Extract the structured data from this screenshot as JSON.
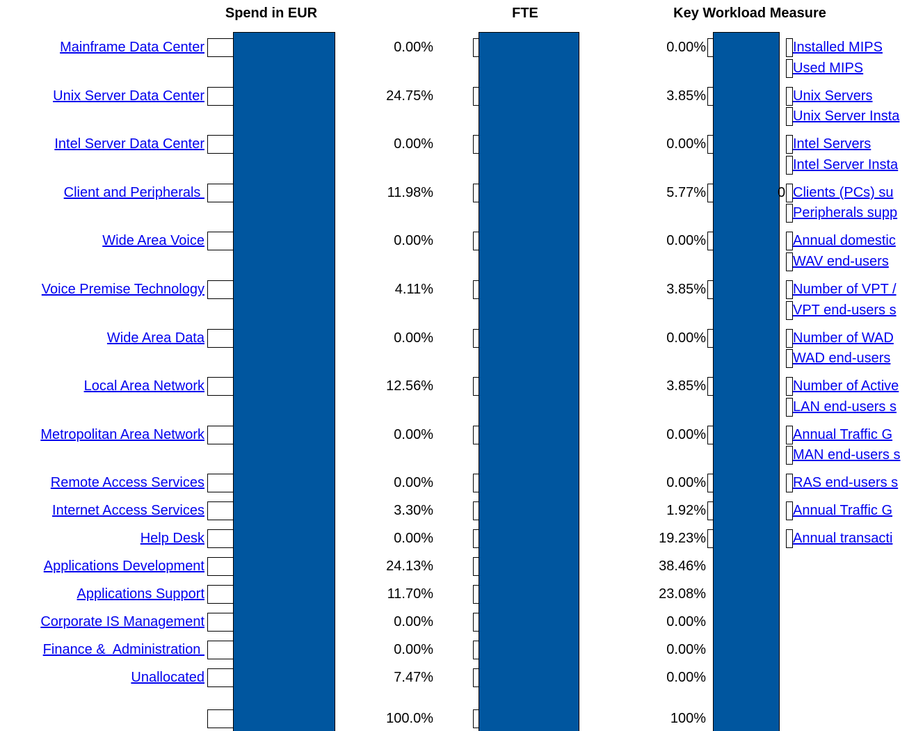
{
  "headers": {
    "spend": "Spend in EUR",
    "fte": "FTE",
    "workload": "Key Workload Measure"
  },
  "rows": [
    {
      "name": "Mainframe Data Center",
      "spend": "0.00%",
      "fte": "0.00%",
      "workload": [
        "Installed MIPS",
        "Used MIPS"
      ]
    },
    {
      "name": "Unix Server Data Center",
      "spend": "24.75%",
      "fte": "3.85%",
      "workload": [
        "Unix Servers",
        "Unix Server Insta"
      ]
    },
    {
      "name": "Intel Server Data Center",
      "spend": "0.00%",
      "fte": "0.00%",
      "workload": [
        "Intel Servers",
        "Intel Server Insta"
      ]
    },
    {
      "name": "Client and Peripherals ",
      "spend": "11.98%",
      "fte": "5.77%",
      "fragment": "0",
      "workload": [
        "Clients (PCs) su",
        "Peripherals supp"
      ]
    },
    {
      "name": "Wide Area Voice",
      "spend": "0.00%",
      "fte": "0.00%",
      "workload": [
        "Annual domestic",
        "WAV end-users"
      ]
    },
    {
      "name": "Voice Premise Technology",
      "spend": "4.11%",
      "fte": "3.85%",
      "workload": [
        "Number of VPT /",
        "VPT end-users s"
      ]
    },
    {
      "name": "Wide Area Data",
      "spend": "0.00%",
      "fte": "0.00%",
      "workload": [
        "Number of WAD",
        "WAD end-users"
      ]
    },
    {
      "name": "Local Area Network",
      "spend": "12.56%",
      "fte": "3.85%",
      "workload": [
        "Number of Active",
        "LAN end-users s"
      ]
    },
    {
      "name": "Metropolitan Area Network",
      "spend": "0.00%",
      "fte": "0.00%",
      "workload": [
        "Annual Traffic G",
        "MAN end-users s"
      ]
    },
    {
      "name": "Remote Access Services",
      "spend": "0.00%",
      "fte": "0.00%",
      "workload": [
        "RAS end-users s"
      ]
    },
    {
      "name": "Internet Access Services",
      "spend": "3.30%",
      "fte": "1.92%",
      "workload": [
        "Annual Traffic G"
      ]
    },
    {
      "name": "Help Desk",
      "spend": "0.00%",
      "fte": "19.23%",
      "workload": [
        "Annual transacti"
      ]
    },
    {
      "name": "Applications Development",
      "spend": "24.13%",
      "fte": "38.46%",
      "workload": []
    },
    {
      "name": "Applications Support",
      "spend": "11.70%",
      "fte": "23.08%",
      "workload": []
    },
    {
      "name": "Corporate IS Management",
      "spend": "0.00%",
      "fte": "0.00%",
      "workload": []
    },
    {
      "name": "Finance &  Administration ",
      "spend": "0.00%",
      "fte": "0.00%",
      "workload": []
    },
    {
      "name": "Unallocated",
      "spend": "7.47%",
      "fte": "0.00%",
      "workload": []
    }
  ],
  "total": {
    "spend": "100.0%",
    "fte": "100%"
  }
}
